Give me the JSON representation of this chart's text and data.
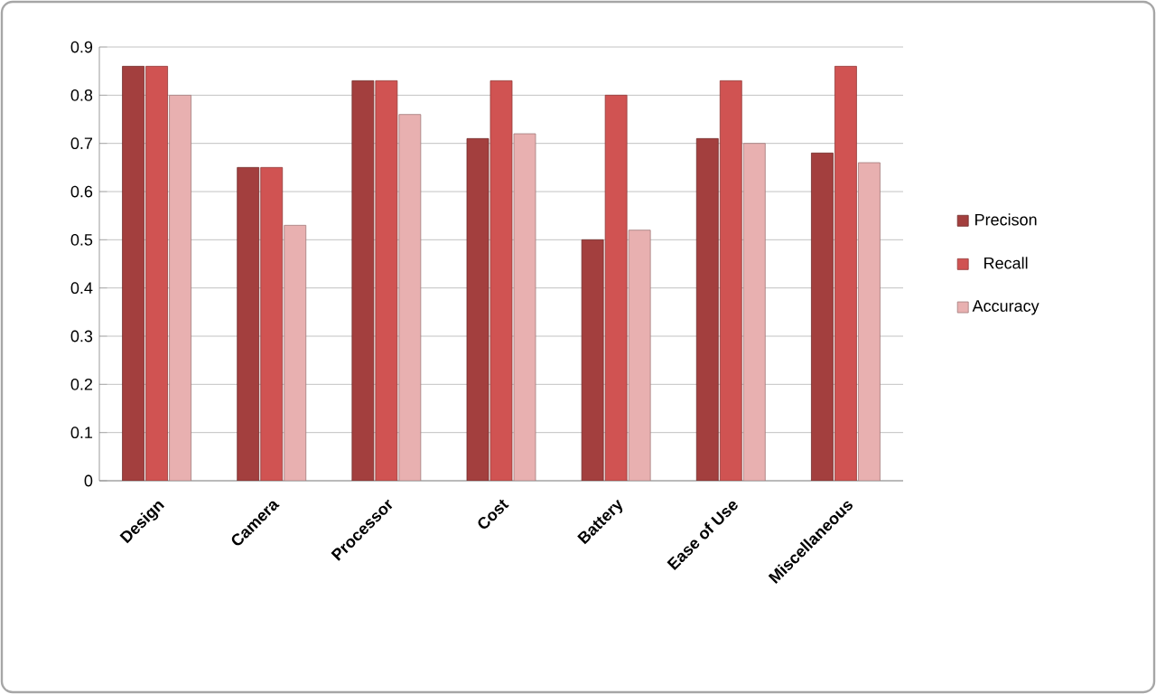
{
  "chart_data": {
    "type": "bar",
    "categories": [
      "Design",
      "Camera",
      "Processor",
      "Cost",
      "Battery",
      "Ease of Use",
      "Miscellaneous"
    ],
    "series": [
      {
        "name": "Precison",
        "color": "#a33f3e",
        "values": [
          0.86,
          0.65,
          0.83,
          0.71,
          0.5,
          0.71,
          0.68
        ]
      },
      {
        "name": "Recall",
        "color": "#d05352",
        "values": [
          0.86,
          0.65,
          0.83,
          0.83,
          0.8,
          0.83,
          0.86
        ]
      },
      {
        "name": "Accuracy",
        "color": "#e8b0b0",
        "values": [
          0.8,
          0.53,
          0.76,
          0.72,
          0.52,
          0.7,
          0.66
        ]
      }
    ],
    "ylim": [
      0,
      0.9
    ],
    "yticks": [
      0,
      0.1,
      0.2,
      0.3,
      0.4,
      0.5,
      0.6,
      0.7,
      0.8,
      0.9
    ],
    "grid": "y",
    "legend": "right"
  }
}
